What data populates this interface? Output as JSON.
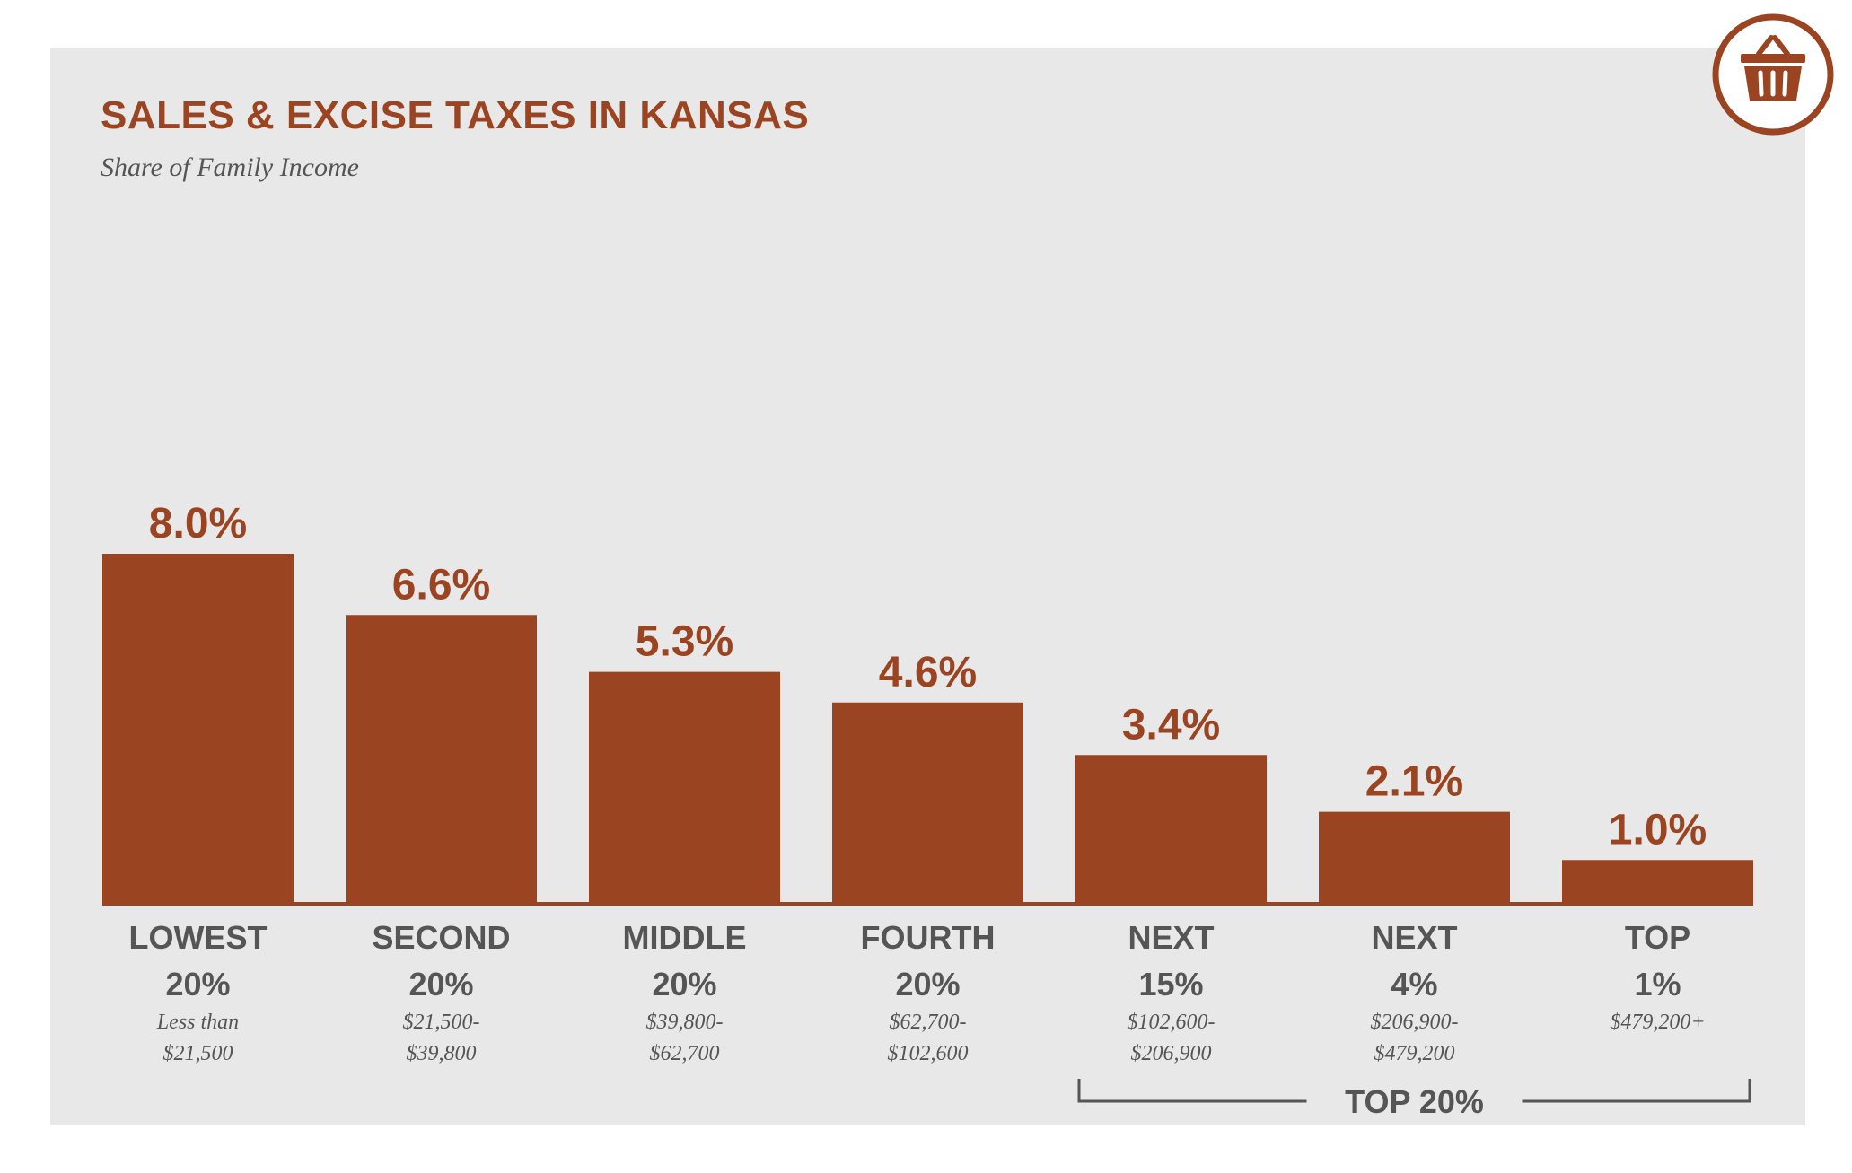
{
  "header": {
    "title": "SALES & EXCISE TAXES IN KANSAS",
    "subtitle": "Share of Family Income"
  },
  "icon": {
    "name": "basket-icon",
    "color": "#9b4422"
  },
  "colors": {
    "bar": "#9b4422",
    "label": "#555555",
    "background": "#e8e8e8"
  },
  "chart_data": {
    "type": "bar",
    "title": "SALES & EXCISE TAXES IN KANSAS",
    "subtitle": "Share of Family Income",
    "categories": [
      "LOWEST 20%",
      "SECOND 20%",
      "MIDDLE 20%",
      "FOURTH 20%",
      "NEXT 15%",
      "NEXT 4%",
      "TOP 1%"
    ],
    "category_lines": [
      [
        "LOWEST",
        "20%"
      ],
      [
        "SECOND",
        "20%"
      ],
      [
        "MIDDLE",
        "20%"
      ],
      [
        "FOURTH",
        "20%"
      ],
      [
        "NEXT",
        "15%"
      ],
      [
        "NEXT",
        "4%"
      ],
      [
        "TOP",
        "1%"
      ]
    ],
    "income_ranges": [
      [
        "Less than",
        "$21,500"
      ],
      [
        "$21,500-",
        "$39,800"
      ],
      [
        "$39,800-",
        "$62,700"
      ],
      [
        "$62,700-",
        "$102,600"
      ],
      [
        "$102,600-",
        "$206,900"
      ],
      [
        "$206,900-",
        "$479,200"
      ],
      [
        "$479,200+"
      ]
    ],
    "values": [
      8.0,
      6.6,
      5.3,
      4.6,
      3.4,
      2.1,
      1.0
    ],
    "value_labels": [
      "8.0%",
      "6.6%",
      "5.3%",
      "4.6%",
      "3.4%",
      "2.1%",
      "1.0%"
    ],
    "ylim": [
      0,
      8.0
    ],
    "grid": false,
    "legend": "none",
    "group_bracket": {
      "label": "TOP 20%",
      "from_category": 4,
      "to_category": 6
    }
  }
}
